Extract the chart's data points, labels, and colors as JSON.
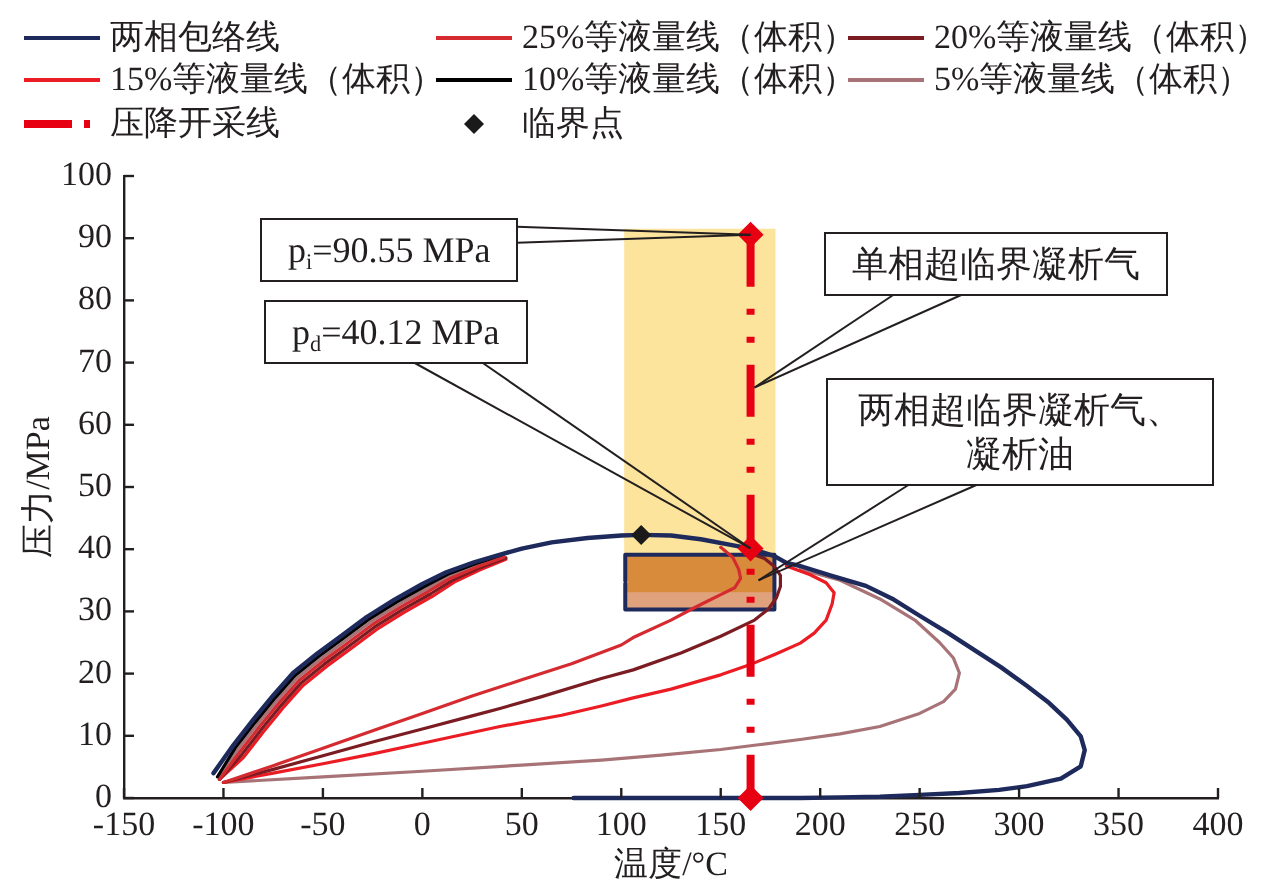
{
  "chart_data": {
    "type": "line",
    "xlabel": "温度/°C",
    "ylabel": "压力/MPa",
    "xlim": [
      -150,
      400
    ],
    "xticks": [
      -150,
      -100,
      -50,
      0,
      50,
      100,
      150,
      200,
      250,
      300,
      350,
      400
    ],
    "ylim": [
      0,
      100
    ],
    "yticks": [
      0,
      10,
      20,
      30,
      40,
      50,
      60,
      70,
      80,
      90,
      100
    ],
    "legend": "top",
    "annotations": [
      {
        "text": "p$_{i}$=90.55 MPa",
        "x": 165,
        "y": 90.55
      },
      {
        "text": "p$_{d}$=40.12 MPa",
        "x": 165,
        "y": 40.12
      },
      {
        "text": "单相超临界凝析气",
        "x": 167,
        "y": 66
      },
      {
        "text": "两相超临界凝析气、凝析油",
        "x": 169,
        "y": 35
      }
    ],
    "series": [
      {
        "name": "两相包络线",
        "color": "#1f2a5c",
        "x": [
          -105,
          -95,
          -85,
          -75,
          -65,
          -53,
          -41,
          -28,
          -14,
          0,
          12,
          26,
          40,
          50,
          65,
          83,
          100,
          110,
          125,
          140,
          155,
          165,
          177,
          183,
          190,
          205,
          223,
          237,
          250,
          264,
          277,
          291,
          304,
          315,
          324,
          331,
          333,
          331,
          321,
          304,
          290,
          270,
          250,
          230,
          210,
          190,
          76
        ],
        "values": [
          4.0,
          8.5,
          12.6,
          16.5,
          20.1,
          23.2,
          26.0,
          29.1,
          31.9,
          34.4,
          36.3,
          37.9,
          39.2,
          40.1,
          41.1,
          41.8,
          42.2,
          42.3,
          42.2,
          41.6,
          40.7,
          40.1,
          38.9,
          37.8,
          37.3,
          35.8,
          34.1,
          31.9,
          29.3,
          26.6,
          23.9,
          21.0,
          18.0,
          15.3,
          12.6,
          9.9,
          7.7,
          5.1,
          3.1,
          1.9,
          1.3,
          0.8,
          0.5,
          0.2,
          0.1,
          0,
          0
        ]
      },
      {
        "name": "25%等液量线（体积）",
        "color": "#d42a30",
        "x": [
          -102,
          -92,
          -82,
          -72,
          -62,
          -50,
          -38,
          -25,
          -11,
          3,
          14,
          28,
          41,
          90,
          150,
          156,
          159,
          160,
          157,
          150,
          143,
          135,
          125,
          106,
          100,
          75,
          50,
          25,
          0,
          -25,
          -50,
          -75,
          -100
        ],
        "values": [
          3.0,
          7.3,
          11.4,
          15.3,
          18.9,
          22.0,
          24.8,
          27.9,
          30.7,
          33.2,
          35.3,
          37.2,
          38.7,
          null,
          40.3,
          38.7,
          36.8,
          35.3,
          33.8,
          32.7,
          31.6,
          30.3,
          28.6,
          25.8,
          24.6,
          21.6,
          19.0,
          16.4,
          13.6,
          10.8,
          8.0,
          5.2,
          2.5
        ]
      },
      {
        "name": "20%等液量线（体积）",
        "color": "#7a1c22",
        "x": [
          -102,
          -91,
          -81,
          -71,
          -61,
          -49,
          -37,
          -24,
          -10,
          4,
          15,
          28,
          42,
          100,
          165,
          172,
          177,
          180,
          180,
          178,
          174,
          167,
          150,
          130,
          106,
          90,
          60,
          39,
          25,
          0,
          -25,
          -50,
          -75,
          -100
        ],
        "values": [
          3.0,
          6.9,
          11.0,
          14.9,
          18.5,
          21.6,
          24.4,
          27.5,
          30.3,
          32.8,
          35.0,
          36.9,
          38.6,
          null,
          39.3,
          38.5,
          37.2,
          35.8,
          34.0,
          32.2,
          30.4,
          28.6,
          26.0,
          23.3,
          20.6,
          19.2,
          16.3,
          14.4,
          13.2,
          11.1,
          9.0,
          6.8,
          4.6,
          2.5
        ]
      },
      {
        "name": "15%等液量线（体积）",
        "color": "#ec1c24",
        "x": [
          -102,
          -90,
          -80,
          -70,
          -60,
          -48,
          -36,
          -23,
          -9,
          5,
          16,
          29,
          42,
          110,
          183,
          195,
          203,
          207,
          206,
          203,
          197,
          190,
          178,
          166,
          150,
          125,
          106,
          90,
          70,
          39,
          0,
          -25,
          -50,
          -75,
          -100
        ],
        "values": [
          3.0,
          6.5,
          10.6,
          14.5,
          18.1,
          21.2,
          24.0,
          27.1,
          29.9,
          32.4,
          34.7,
          36.7,
          38.4,
          null,
          37.3,
          35.9,
          34.6,
          33.0,
          31.2,
          28.6,
          26.5,
          24.9,
          23.2,
          21.6,
          19.8,
          17.5,
          16.1,
          14.8,
          13.3,
          11.5,
          8.8,
          7.1,
          5.5,
          4.0,
          2.5
        ]
      },
      {
        "name": "10%等液量线（体积）",
        "color": "#000000",
        "x": [
          -103,
          -94,
          -84,
          -74,
          -64,
          -52,
          -40,
          -27,
          -13,
          1,
          13,
          27,
          40
        ],
        "values": [
          3.4,
          8.1,
          12.2,
          16.1,
          19.7,
          22.8,
          25.6,
          28.7,
          31.5,
          34.0,
          36.0,
          37.7,
          39.0
        ]
      },
      {
        "name": "5%等液量线（体积）",
        "color": "#a87377",
        "x": [
          -102,
          -93,
          -83,
          -73,
          -63,
          -51,
          -39,
          -26,
          -12,
          2,
          14,
          27,
          41,
          120,
          190,
          210,
          230,
          248,
          260,
          267,
          270,
          268,
          262,
          250,
          230,
          210,
          190,
          170,
          150,
          120,
          90,
          50,
          0,
          -50,
          -100
        ],
        "values": [
          3.0,
          7.7,
          11.8,
          15.7,
          19.3,
          22.4,
          25.2,
          28.3,
          31.1,
          33.6,
          35.7,
          37.4,
          38.9,
          null,
          36.8,
          35.0,
          32.0,
          28.5,
          25.0,
          22.5,
          20.1,
          17.5,
          15.5,
          13.6,
          11.5,
          10.3,
          9.4,
          8.6,
          7.8,
          6.9,
          6.1,
          5.3,
          4.3,
          3.4,
          2.5
        ]
      },
      {
        "name": "压降开采线",
        "color": "#e60012",
        "x": [
          165,
          165,
          165
        ],
        "values": [
          90.55,
          40.12,
          0
        ],
        "marker": "diamond",
        "line_style": "dashed"
      },
      {
        "name": "临界点",
        "type": "scatter",
        "color": "#1a1a1a",
        "x": [
          110
        ],
        "values": [
          42.3
        ],
        "marker": "diamond"
      },
      {
        "type": "bar",
        "color": "#fde49c",
        "x": [
          139.5
        ],
        "values": [
          52.3
        ],
        "base": [
          39.1
        ]
      },
      {
        "type": "bar",
        "color": "#d98b3c",
        "x": [
          139.5
        ],
        "values": [
          5.9
        ],
        "base": [
          33.2
        ]
      },
      {
        "type": "bar",
        "color": "#e0a27c",
        "x": [
          139.5
        ],
        "values": [
          2.9
        ],
        "base": [
          30.3
        ]
      },
      {
        "type": "line",
        "color": "#1f2a5c",
        "x": [
          102,
          102,
          177,
          177,
          102,
          102
        ],
        "values": [
          34.9,
          39.1,
          39.1,
          30.3,
          30.3,
          34.5
        ]
      }
    ]
  }
}
